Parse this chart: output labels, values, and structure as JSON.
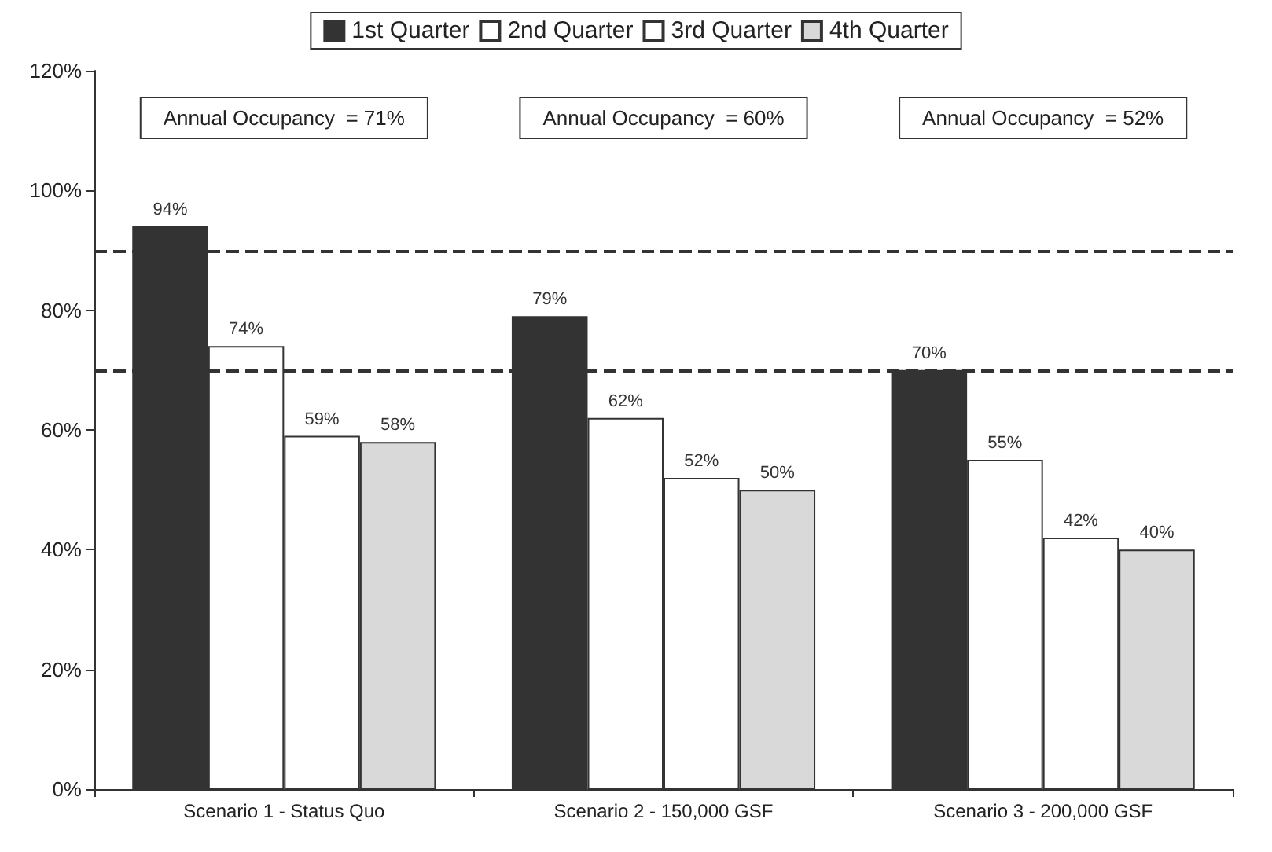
{
  "chart_data": {
    "type": "bar",
    "categories": [
      "Scenario 1 - Status Quo",
      "Scenario 2 - 150,000 GSF",
      "Scenario 3 - 200,000 GSF"
    ],
    "series": [
      {
        "name": "1st Quarter",
        "color": "#333333",
        "values": [
          94,
          79,
          70
        ]
      },
      {
        "name": "2nd Quarter",
        "color": "#ffffff",
        "values": [
          74,
          62,
          55
        ]
      },
      {
        "name": "3rd Quarter",
        "color": "#ffffff",
        "values": [
          59,
          52,
          42
        ]
      },
      {
        "name": "4th Quarter",
        "color": "#d9d9d9",
        "values": [
          58,
          50,
          40
        ]
      }
    ],
    "ylim": [
      0,
      120
    ],
    "yticks": [
      {
        "value": 0,
        "label": "0%"
      },
      {
        "value": 20,
        "label": "20%"
      },
      {
        "value": 40,
        "label": "40%"
      },
      {
        "value": 60,
        "label": "60%"
      },
      {
        "value": 80,
        "label": "80%"
      },
      {
        "value": 100,
        "label": "100%"
      },
      {
        "value": 120,
        "label": "120%"
      }
    ],
    "value_labels": [
      [
        "94%",
        "79%",
        "70%"
      ],
      [
        "74%",
        "62%",
        "55%"
      ],
      [
        "59%",
        "52%",
        "42%"
      ],
      [
        "58%",
        "50%",
        "40%"
      ]
    ],
    "annotations": [
      "Annual Occupancy  = 71%",
      "Annual Occupancy  = 60%",
      "Annual Occupancy  = 52%"
    ],
    "ref_lines": [
      {
        "axis": "y",
        "value": 90,
        "line_style": "dashed",
        "color": "#333333"
      },
      {
        "axis": "y",
        "value": 70,
        "line_style": "dashed",
        "color": "#333333"
      }
    ],
    "grid": false,
    "legend": "top"
  }
}
